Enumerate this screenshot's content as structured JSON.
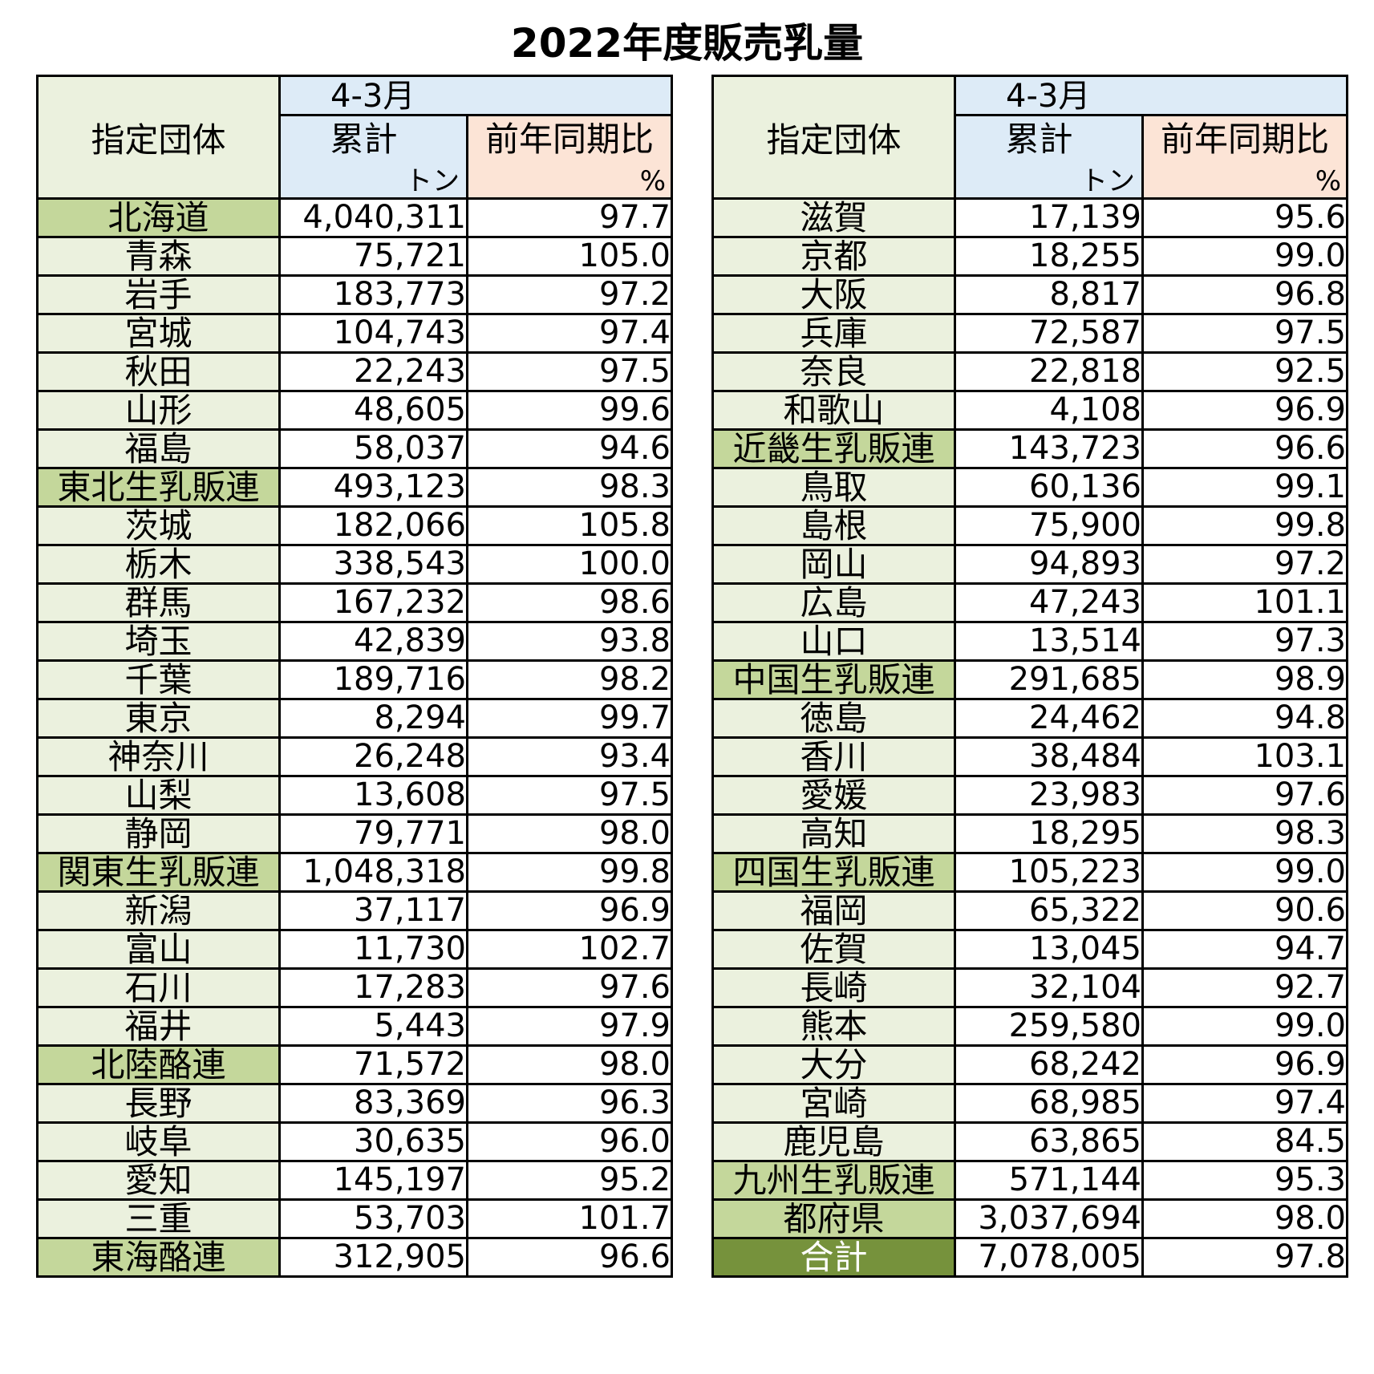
{
  "title": "2022年度販売乳量",
  "header": {
    "group_label": "指定団体",
    "period_label": "4-3月",
    "cum_label": "累計",
    "ratio_label": "前年同期比",
    "unit_ton": "トン",
    "unit_pct": "%"
  },
  "left_rows": [
    {
      "name": "北海道",
      "tons": "4,040,311",
      "ratio": "97.7",
      "kind": "sub"
    },
    {
      "name": "青森",
      "tons": "75,721",
      "ratio": "105.0",
      "kind": "pref"
    },
    {
      "name": "岩手",
      "tons": "183,773",
      "ratio": "97.2",
      "kind": "pref"
    },
    {
      "name": "宮城",
      "tons": "104,743",
      "ratio": "97.4",
      "kind": "pref"
    },
    {
      "name": "秋田",
      "tons": "22,243",
      "ratio": "97.5",
      "kind": "pref"
    },
    {
      "name": "山形",
      "tons": "48,605",
      "ratio": "99.6",
      "kind": "pref"
    },
    {
      "name": "福島",
      "tons": "58,037",
      "ratio": "94.6",
      "kind": "pref"
    },
    {
      "name": "東北生乳販連",
      "tons": "493,123",
      "ratio": "98.3",
      "kind": "sub"
    },
    {
      "name": "茨城",
      "tons": "182,066",
      "ratio": "105.8",
      "kind": "pref"
    },
    {
      "name": "栃木",
      "tons": "338,543",
      "ratio": "100.0",
      "kind": "pref"
    },
    {
      "name": "群馬",
      "tons": "167,232",
      "ratio": "98.6",
      "kind": "pref"
    },
    {
      "name": "埼玉",
      "tons": "42,839",
      "ratio": "93.8",
      "kind": "pref"
    },
    {
      "name": "千葉",
      "tons": "189,716",
      "ratio": "98.2",
      "kind": "pref"
    },
    {
      "name": "東京",
      "tons": "8,294",
      "ratio": "99.7",
      "kind": "pref"
    },
    {
      "name": "神奈川",
      "tons": "26,248",
      "ratio": "93.4",
      "kind": "pref"
    },
    {
      "name": "山梨",
      "tons": "13,608",
      "ratio": "97.5",
      "kind": "pref"
    },
    {
      "name": "静岡",
      "tons": "79,771",
      "ratio": "98.0",
      "kind": "pref"
    },
    {
      "name": "関東生乳販連",
      "tons": "1,048,318",
      "ratio": "99.8",
      "kind": "sub"
    },
    {
      "name": "新潟",
      "tons": "37,117",
      "ratio": "96.9",
      "kind": "pref"
    },
    {
      "name": "富山",
      "tons": "11,730",
      "ratio": "102.7",
      "kind": "pref"
    },
    {
      "name": "石川",
      "tons": "17,283",
      "ratio": "97.6",
      "kind": "pref"
    },
    {
      "name": "福井",
      "tons": "5,443",
      "ratio": "97.9",
      "kind": "pref"
    },
    {
      "name": "北陸酪連",
      "tons": "71,572",
      "ratio": "98.0",
      "kind": "sub"
    },
    {
      "name": "長野",
      "tons": "83,369",
      "ratio": "96.3",
      "kind": "pref"
    },
    {
      "name": "岐阜",
      "tons": "30,635",
      "ratio": "96.0",
      "kind": "pref"
    },
    {
      "name": "愛知",
      "tons": "145,197",
      "ratio": "95.2",
      "kind": "pref"
    },
    {
      "name": "三重",
      "tons": "53,703",
      "ratio": "101.7",
      "kind": "pref"
    },
    {
      "name": "東海酪連",
      "tons": "312,905",
      "ratio": "96.6",
      "kind": "sub"
    }
  ],
  "right_rows": [
    {
      "name": "滋賀",
      "tons": "17,139",
      "ratio": "95.6",
      "kind": "pref"
    },
    {
      "name": "京都",
      "tons": "18,255",
      "ratio": "99.0",
      "kind": "pref"
    },
    {
      "name": "大阪",
      "tons": "8,817",
      "ratio": "96.8",
      "kind": "pref"
    },
    {
      "name": "兵庫",
      "tons": "72,587",
      "ratio": "97.5",
      "kind": "pref"
    },
    {
      "name": "奈良",
      "tons": "22,818",
      "ratio": "92.5",
      "kind": "pref"
    },
    {
      "name": "和歌山",
      "tons": "4,108",
      "ratio": "96.9",
      "kind": "pref"
    },
    {
      "name": "近畿生乳販連",
      "tons": "143,723",
      "ratio": "96.6",
      "kind": "sub"
    },
    {
      "name": "鳥取",
      "tons": "60,136",
      "ratio": "99.1",
      "kind": "pref"
    },
    {
      "name": "島根",
      "tons": "75,900",
      "ratio": "99.8",
      "kind": "pref"
    },
    {
      "name": "岡山",
      "tons": "94,893",
      "ratio": "97.2",
      "kind": "pref"
    },
    {
      "name": "広島",
      "tons": "47,243",
      "ratio": "101.1",
      "kind": "pref"
    },
    {
      "name": "山口",
      "tons": "13,514",
      "ratio": "97.3",
      "kind": "pref"
    },
    {
      "name": "中国生乳販連",
      "tons": "291,685",
      "ratio": "98.9",
      "kind": "sub"
    },
    {
      "name": "徳島",
      "tons": "24,462",
      "ratio": "94.8",
      "kind": "pref"
    },
    {
      "name": "香川",
      "tons": "38,484",
      "ratio": "103.1",
      "kind": "pref"
    },
    {
      "name": "愛媛",
      "tons": "23,983",
      "ratio": "97.6",
      "kind": "pref"
    },
    {
      "name": "高知",
      "tons": "18,295",
      "ratio": "98.3",
      "kind": "pref"
    },
    {
      "name": "四国生乳販連",
      "tons": "105,223",
      "ratio": "99.0",
      "kind": "sub"
    },
    {
      "name": "福岡",
      "tons": "65,322",
      "ratio": "90.6",
      "kind": "pref"
    },
    {
      "name": "佐賀",
      "tons": "13,045",
      "ratio": "94.7",
      "kind": "pref"
    },
    {
      "name": "長崎",
      "tons": "32,104",
      "ratio": "92.7",
      "kind": "pref"
    },
    {
      "name": "熊本",
      "tons": "259,580",
      "ratio": "99.0",
      "kind": "pref"
    },
    {
      "name": "大分",
      "tons": "68,242",
      "ratio": "96.9",
      "kind": "pref"
    },
    {
      "name": "宮崎",
      "tons": "68,985",
      "ratio": "97.4",
      "kind": "pref"
    },
    {
      "name": "鹿児島",
      "tons": "63,865",
      "ratio": "84.5",
      "kind": "pref"
    },
    {
      "name": "九州生乳販連",
      "tons": "571,144",
      "ratio": "95.3",
      "kind": "sub"
    },
    {
      "name": "都府県",
      "tons": "3,037,694",
      "ratio": "98.0",
      "kind": "sub"
    },
    {
      "name": "合計",
      "tons": "7,078,005",
      "ratio": "97.8",
      "kind": "total"
    }
  ],
  "colors": {
    "name_bg": "#EBF1DE",
    "subtotal_bg": "#C4D79B",
    "total_bg": "#76923C",
    "cum_header_bg": "#DDEBF7",
    "ratio_header_bg": "#FCE4D6"
  }
}
